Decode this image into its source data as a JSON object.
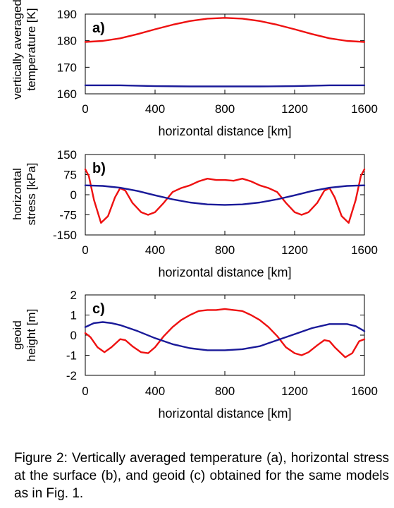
{
  "caption": "Figure 2: Vertically averaged temperature (a), horizontal stress at the surface (b), and geoid (c) obtained for the same models as in Fig. 1.",
  "chart_data": [
    {
      "type": "line",
      "panel_label": "a)",
      "xlabel": "horizontal distance [km]",
      "ylabel_lines": [
        "vertically averaged",
        "temperature [K]"
      ],
      "xlim": [
        0,
        1600
      ],
      "ylim": [
        160,
        190
      ],
      "xticks": [
        0,
        400,
        800,
        1200,
        1600
      ],
      "yticks": [
        160,
        170,
        180,
        190
      ],
      "grid": false,
      "series": [
        {
          "color": "#ee1111",
          "x": [
            0,
            100,
            200,
            300,
            400,
            500,
            600,
            700,
            800,
            900,
            1000,
            1100,
            1200,
            1300,
            1400,
            1500,
            1600
          ],
          "y": [
            179.5,
            179.9,
            180.9,
            182.5,
            184.3,
            186.0,
            187.4,
            188.3,
            188.6,
            188.3,
            187.4,
            186.0,
            184.3,
            182.5,
            180.9,
            179.9,
            179.5
          ]
        },
        {
          "color": "#1a1a99",
          "x": [
            0,
            200,
            400,
            600,
            800,
            1000,
            1200,
            1400,
            1600
          ],
          "y": [
            163.2,
            163.2,
            162.9,
            162.8,
            162.8,
            162.8,
            162.9,
            163.2,
            163.2
          ]
        }
      ]
    },
    {
      "type": "line",
      "panel_label": "b)",
      "xlabel": "horizontal distance [km]",
      "ylabel_lines": [
        "horizontal",
        "stress [kPa]"
      ],
      "xlim": [
        0,
        1600
      ],
      "ylim": [
        -150,
        150
      ],
      "xticks": [
        0,
        400,
        800,
        1200,
        1600
      ],
      "yticks": [
        -150,
        -75,
        0,
        75,
        150
      ],
      "grid": false,
      "series": [
        {
          "color": "#ee1111",
          "x": [
            0,
            20,
            50,
            90,
            130,
            170,
            200,
            230,
            270,
            320,
            360,
            400,
            450,
            500,
            550,
            600,
            650,
            700,
            750,
            800,
            850,
            900,
            950,
            1000,
            1050,
            1100,
            1150,
            1200,
            1240,
            1280,
            1330,
            1370,
            1400,
            1430,
            1470,
            1510,
            1550,
            1580,
            1600
          ],
          "y": [
            95,
            70,
            -20,
            -105,
            -80,
            -10,
            25,
            15,
            -30,
            -65,
            -75,
            -65,
            -30,
            10,
            25,
            35,
            50,
            60,
            55,
            55,
            52,
            60,
            50,
            35,
            25,
            10,
            -30,
            -65,
            -75,
            -65,
            -30,
            15,
            25,
            -10,
            -80,
            -105,
            -20,
            70,
            95
          ]
        },
        {
          "color": "#1a1a99",
          "x": [
            0,
            100,
            200,
            300,
            400,
            500,
            600,
            700,
            800,
            900,
            1000,
            1100,
            1200,
            1300,
            1400,
            1500,
            1600
          ],
          "y": [
            35,
            33,
            26,
            14,
            -2,
            -17,
            -29,
            -36,
            -38,
            -36,
            -29,
            -17,
            -2,
            14,
            26,
            33,
            35
          ]
        }
      ]
    },
    {
      "type": "line",
      "panel_label": "c)",
      "xlabel": "horizontal distance [km]",
      "ylabel_lines": [
        "geoid",
        "height [m]"
      ],
      "xlim": [
        0,
        1600
      ],
      "ylim": [
        -2,
        2
      ],
      "xticks": [
        0,
        400,
        800,
        1200,
        1600
      ],
      "yticks": [
        -2,
        -1,
        0,
        1,
        2
      ],
      "grid": false,
      "series": [
        {
          "color": "#ee1111",
          "x": [
            0,
            30,
            70,
            110,
            150,
            200,
            230,
            270,
            320,
            360,
            400,
            450,
            500,
            550,
            600,
            650,
            700,
            750,
            800,
            850,
            900,
            950,
            1000,
            1050,
            1100,
            1150,
            1200,
            1240,
            1280,
            1330,
            1370,
            1400,
            1430,
            1490,
            1530,
            1570,
            1600
          ],
          "y": [
            0.1,
            -0.1,
            -0.6,
            -0.85,
            -0.6,
            -0.2,
            -0.25,
            -0.55,
            -0.85,
            -0.9,
            -0.6,
            -0.05,
            0.4,
            0.75,
            1.0,
            1.2,
            1.25,
            1.25,
            1.3,
            1.25,
            1.2,
            1.0,
            0.75,
            0.4,
            -0.05,
            -0.6,
            -0.9,
            -1.0,
            -0.85,
            -0.5,
            -0.25,
            -0.3,
            -0.6,
            -1.1,
            -0.9,
            -0.3,
            -0.2
          ]
        },
        {
          "color": "#1a1a99",
          "x": [
            0,
            50,
            100,
            150,
            200,
            300,
            400,
            500,
            600,
            700,
            800,
            900,
            1000,
            1100,
            1200,
            1300,
            1400,
            1450,
            1500,
            1550,
            1600
          ],
          "y": [
            0.4,
            0.6,
            0.65,
            0.6,
            0.5,
            0.2,
            -0.15,
            -0.45,
            -0.65,
            -0.75,
            -0.75,
            -0.7,
            -0.55,
            -0.25,
            0.05,
            0.35,
            0.55,
            0.55,
            0.55,
            0.45,
            0.2
          ]
        }
      ]
    }
  ]
}
